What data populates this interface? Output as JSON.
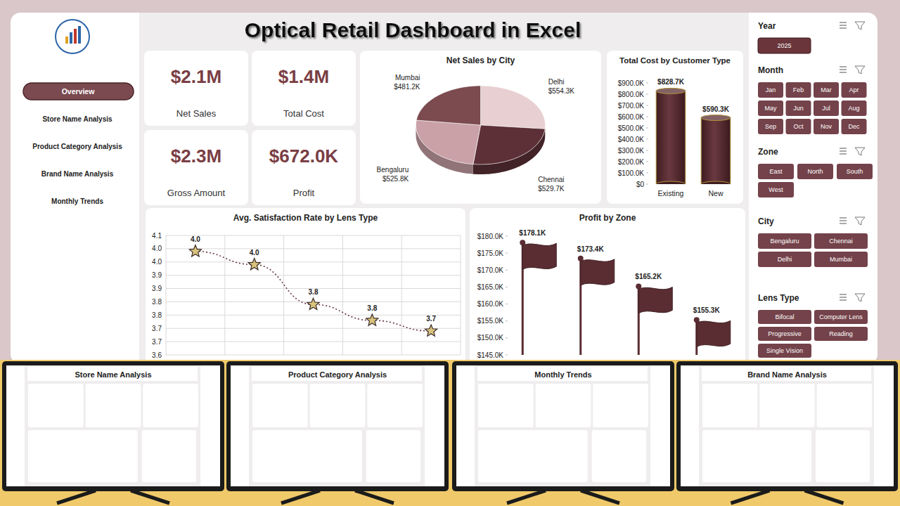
{
  "header": {
    "title": "Optical Retail Dashboard in Excel"
  },
  "nav": [
    "Overview",
    "Store Name Analysis",
    "Product Category Analysis",
    "Brand Name Analysis",
    "Monthly Trends"
  ],
  "kpis": [
    {
      "value": "$2.1M",
      "label": "Net Sales"
    },
    {
      "value": "$1.4M",
      "label": "Total Cost"
    },
    {
      "value": "$2.3M",
      "label": "Gross Amount"
    },
    {
      "value": "$672.0K",
      "label": "Profit"
    }
  ],
  "chart_data": [
    {
      "type": "pie",
      "title": "Net Sales by City",
      "categories": [
        "Delhi",
        "Chennai",
        "Bengaluru",
        "Mumbai"
      ],
      "values": [
        554.3,
        529.7,
        525.8,
        481.2
      ],
      "value_labels": [
        "$554.3K",
        "$529.7K",
        "$525.8K",
        "$481.2K"
      ],
      "colors": [
        "#e8cfd1",
        "#5c3036",
        "#c9a1a6",
        "#7b4b50"
      ],
      "data_labels": true
    },
    {
      "type": "bar",
      "title": "Total Cost by Customer Type",
      "categories": [
        "Existing",
        "New"
      ],
      "values": [
        828700,
        590300
      ],
      "value_labels": [
        "$828.7K",
        "$590.3K"
      ],
      "color": "#5a2d32",
      "marker": "cylinder",
      "grid": false,
      "data_labels": true,
      "ylim": [
        0,
        900000
      ],
      "yticks": [
        {
          "value": 0,
          "label": "$0"
        },
        {
          "value": 100000,
          "label": "$100.0K"
        },
        {
          "value": 200000,
          "label": "$200.0K"
        },
        {
          "value": 300000,
          "label": "$300.0K"
        },
        {
          "value": 400000,
          "label": "$400.0K"
        },
        {
          "value": 500000,
          "label": "$500.0K"
        },
        {
          "value": 600000,
          "label": "$600.0K"
        },
        {
          "value": 700000,
          "label": "$700.0K"
        },
        {
          "value": 800000,
          "label": "$800.0K"
        },
        {
          "value": 900000,
          "label": "$900.0K"
        }
      ]
    },
    {
      "type": "line",
      "title": "Avg. Satisfaction Rate by Lens Type",
      "categories": [
        null,
        null,
        null,
        null,
        null
      ],
      "values": [
        4.04,
        3.99,
        3.84,
        3.78,
        3.74
      ],
      "value_labels": [
        "4.0",
        "4.0",
        "3.8",
        "3.8",
        "3.7"
      ],
      "color": "#6a3a40",
      "marker": "star",
      "line_style": "dotted",
      "grid": true,
      "data_labels": true,
      "ylim": [
        3.65,
        4.1
      ],
      "yticks": [
        {
          "value": 3.65,
          "label": "3.6"
        },
        3.7,
        {
          "value": 3.75,
          "label": "3.7"
        },
        3.8,
        {
          "value": 3.85,
          "label": "3.8"
        },
        3.9,
        {
          "value": 3.95,
          "label": "3.9"
        },
        {
          "value": 4,
          "label": "4.0"
        },
        {
          "value": 4.05,
          "label": "4.0"
        },
        4.1
      ]
    },
    {
      "type": "bar",
      "title": "Profit by Zone",
      "categories": [
        null,
        null,
        null,
        null
      ],
      "values": [
        178100,
        173400,
        165200,
        155300
      ],
      "value_labels": [
        "$178.1K",
        "$173.4K",
        "$165.2K",
        "$155.3K"
      ],
      "color": "#5a2d32",
      "marker": "flag",
      "grid": false,
      "data_labels": true,
      "ylim": [
        145000,
        180000
      ],
      "yticks": [
        {
          "value": 145000,
          "label": "$145.0K"
        },
        {
          "value": 150000,
          "label": "$150.0K"
        },
        {
          "value": 155000,
          "label": "$155.0K"
        },
        {
          "value": 160000,
          "label": "$160.0K"
        },
        {
          "value": 165000,
          "label": "$165.0K"
        },
        {
          "value": 170000,
          "label": "$170.0K"
        },
        {
          "value": 175000,
          "label": "$175.0K"
        },
        {
          "value": 180000,
          "label": "$180.0K"
        }
      ]
    }
  ],
  "filters": [
    {
      "title": "Year",
      "options": [
        "2025"
      ]
    },
    {
      "title": "Month",
      "options": [
        "Jan",
        "Feb",
        "Mar",
        "Apr",
        "May",
        "Jun",
        "Jul",
        "Aug",
        "Sep",
        "Oct",
        "Nov",
        "Dec"
      ]
    },
    {
      "title": "Zone",
      "options": [
        "East",
        "North",
        "South",
        "West"
      ]
    },
    {
      "title": "City",
      "options": [
        "Bengaluru",
        "Chennai",
        "Delhi",
        "Mumbai"
      ]
    },
    {
      "title": "Lens Type",
      "options": [
        "Bifocal",
        "Computer Lens",
        "Progressive",
        "Reading",
        "Single Vision"
      ]
    }
  ],
  "previews": [
    "Store Name Analysis",
    "Product Category Analysis",
    "Monthly Trends",
    "Brand Name Analysis"
  ]
}
